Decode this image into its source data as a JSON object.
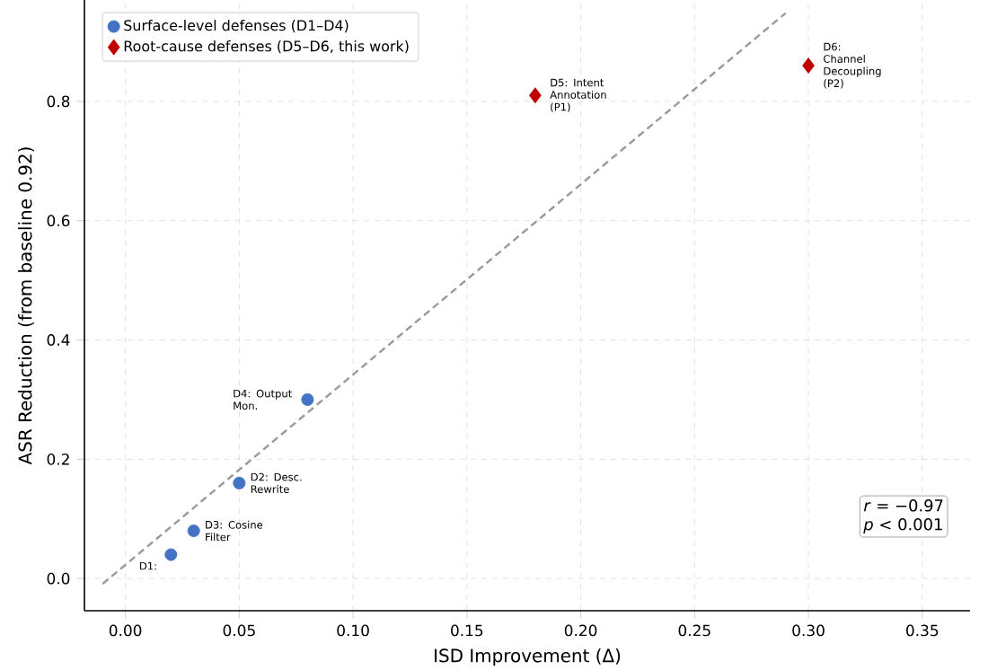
{
  "chart_data": {
    "type": "scatter",
    "xlabel": "ISD Improvement (Δ)",
    "ylabel": "ASR Reduction (from baseline 0.92)",
    "xlim": [
      -0.018,
      0.371
    ],
    "ylim": [
      -0.054,
      0.97
    ],
    "xticks": [
      {
        "value": 0,
        "label": "0.00"
      },
      0.05,
      {
        "value": 0.1,
        "label": "0.10"
      },
      0.15,
      {
        "value": 0.2,
        "label": "0.20"
      },
      0.25,
      {
        "value": 0.3,
        "label": "0.30"
      },
      0.35
    ],
    "yticks": [
      {
        "value": 0,
        "label": "0.0"
      },
      0.2,
      0.4,
      0.6,
      0.8
    ],
    "grid": true,
    "legend": "top left",
    "series": [
      {
        "name": "Surface-level defenses (D1–D4)",
        "color": "#4472c4",
        "marker": "circle",
        "x": [
          0.02,
          0.03,
          0.05,
          0.08
        ],
        "values": [
          0.04,
          0.08,
          0.16,
          0.3
        ]
      },
      {
        "name": "Root-cause defenses (D5–D6, this work)",
        "color": "#c00000",
        "marker": "diamond",
        "x": [
          0.18,
          0.3
        ],
        "values": [
          0.81,
          0.86
        ]
      },
      {
        "type": "line",
        "color": "#999999",
        "line_style": "dashed",
        "marker": "none",
        "x": [
          -0.01,
          0.29
        ],
        "values": [
          -0.009,
          0.948
        ]
      }
    ],
    "annotations": [
      {
        "text": "D1:",
        "x": 0.02,
        "y": 0.04
      },
      {
        "text": "D3: Cosine Filter",
        "x": 0.03,
        "y": 0.08
      },
      {
        "text": "D2: Desc. Rewrite",
        "x": 0.05,
        "y": 0.16
      },
      {
        "text": "D4: Output Mon.",
        "x": 0.08,
        "y": 0.3
      },
      {
        "text": "D5: Intent Annotation (P1)",
        "x": 0.18,
        "y": 0.81
      },
      {
        "text": "D6: Channel Decoupling (P2)",
        "x": 0.3,
        "y": 0.86
      },
      "*r* = −0.97",
      "*p* < 0.001"
    ]
  }
}
